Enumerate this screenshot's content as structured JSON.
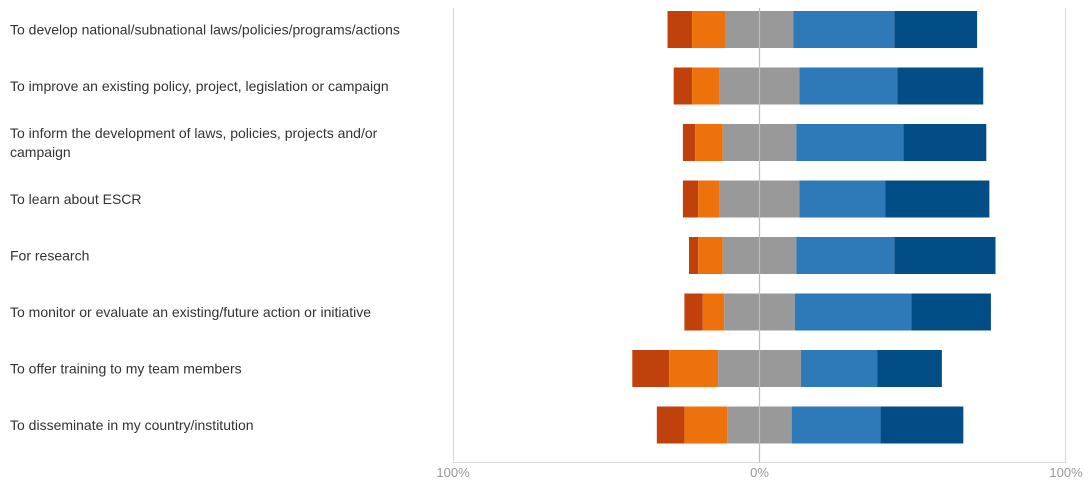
{
  "chart_data": {
    "type": "bar",
    "orientation": "horizontal",
    "stacking": "diverging",
    "categories": [
      "To develop national/subnational laws/policies/programs/actions",
      "To improve an existing policy, project, legislation or campaign",
      "To inform the development of laws, policies, projects and/or campaign",
      "To learn about ESCR",
      "For research",
      "To monitor or evaluate an existing/future action or initiative",
      "To offer training to my team members",
      "To disseminate in my country/institution"
    ],
    "series": [
      {
        "color": "#c0410b",
        "values": [
          8,
          6,
          4,
          5,
          3,
          6,
          12,
          9
        ]
      },
      {
        "color": "#ee720c",
        "values": [
          11,
          9,
          9,
          7,
          8,
          7,
          16,
          14
        ]
      },
      {
        "color": "#999999",
        "values": [
          22,
          26,
          24,
          26,
          24,
          23,
          27,
          21
        ]
      },
      {
        "color": "#2e7ab9",
        "values": [
          33,
          32,
          35,
          28,
          32,
          38,
          25,
          29
        ]
      },
      {
        "color": "#034d86",
        "values": [
          27,
          28,
          27,
          34,
          33,
          26,
          21,
          27
        ]
      }
    ],
    "xlim": [
      -100,
      100
    ],
    "x_ticks": [
      {
        "value": -100,
        "label": "100%"
      },
      {
        "value": 0,
        "label": "0%"
      },
      {
        "value": 100,
        "label": "100%"
      }
    ],
    "grid": false,
    "legend": "none"
  },
  "colors": {
    "axis_line": "#d9d9d9",
    "zero_line": "#bfbfbf",
    "label_text": "#333333",
    "tick_text": "#999999"
  }
}
